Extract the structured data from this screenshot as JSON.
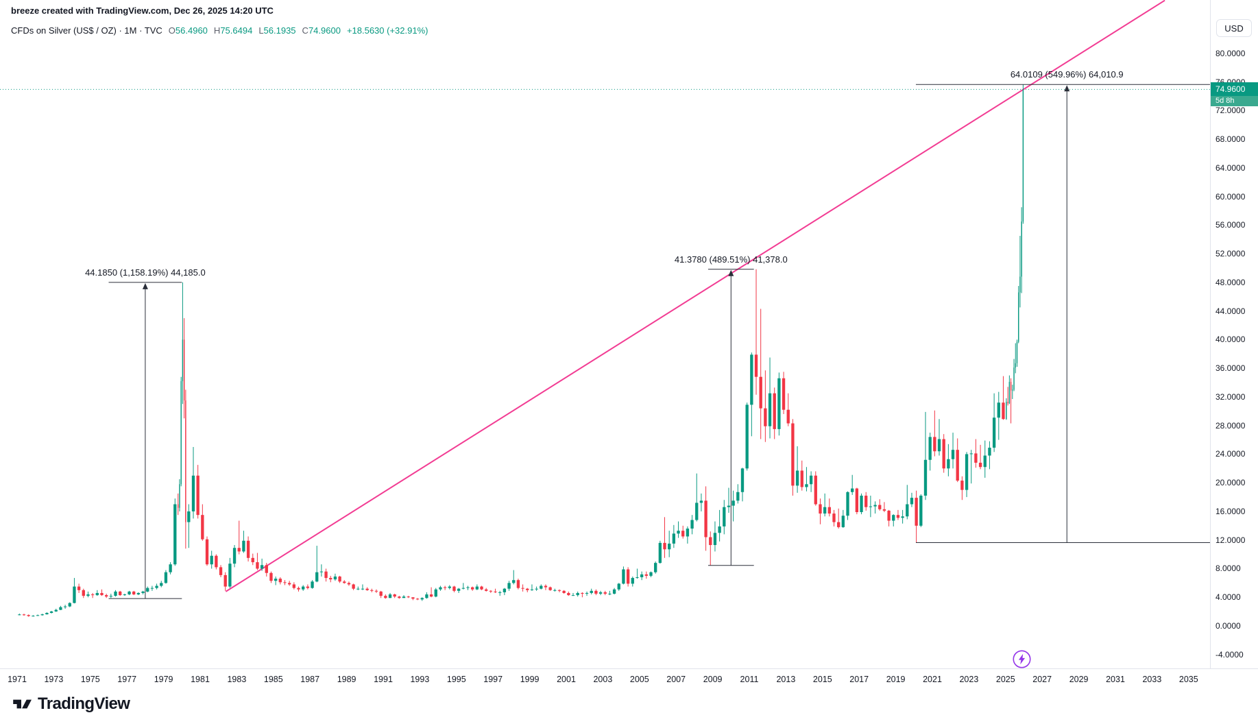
{
  "header": {
    "attribution": "breeze created with TradingView.com, Dec 26, 2025 14:20 UTC",
    "legend": {
      "title": "CFDs on Silver (US$ / OZ) · 1M · TVC",
      "ohlc": [
        {
          "label": "O",
          "value": "56.4960"
        },
        {
          "label": "H",
          "value": "75.6494"
        },
        {
          "label": "L",
          "value": "56.1935"
        },
        {
          "label": "C",
          "value": "74.9600"
        }
      ],
      "change": "+18.5630 (+32.91%)"
    }
  },
  "price_scale": {
    "currency": "USD",
    "tick_values": [
      80,
      76,
      72,
      68,
      64,
      60,
      56,
      52,
      48,
      44,
      40,
      36,
      32,
      28,
      24,
      20,
      16,
      12,
      8,
      4,
      0,
      -4
    ],
    "decimals": 4,
    "last_price_label": "74.9600",
    "countdown": "5d 8h"
  },
  "time_scale": {
    "years": [
      1971,
      1973,
      1975,
      1977,
      1979,
      1981,
      1983,
      1985,
      1987,
      1989,
      1991,
      1993,
      1995,
      1997,
      1999,
      2001,
      2003,
      2005,
      2007,
      2009,
      2011,
      2013,
      2015,
      2017,
      2019,
      2021,
      2023,
      2025,
      2027,
      2029,
      2031,
      2033,
      2035
    ]
  },
  "footer": {
    "brand": "TradingView"
  },
  "colors": {
    "up": "#089981",
    "down": "#f23645",
    "text": "#131722",
    "muted": "#787b86",
    "trendline": "#f23c93",
    "annotation": "#2a2e39",
    "separator": "#e0e3eb",
    "flash": "#9334e9"
  },
  "chart_data": {
    "type": "candlestick",
    "symbol": "CFDs on Silver (US$ / OZ)",
    "timeframe": "1M",
    "exchange": "TVC",
    "x_domain": [
      1971,
      2036.2
    ],
    "price_axis_range": [
      -5.9,
      87.4
    ],
    "last_price": 74.96,
    "last_change": "+18.5630 (+32.91%)",
    "first_open": 1.55,
    "candles": [
      [
        1971,
        1.72,
        1.48,
        1.6
      ],
      [
        1971.25,
        1.7,
        1.42,
        1.52
      ],
      [
        1971.5,
        1.6,
        1.28,
        1.38
      ],
      [
        1971.75,
        1.5,
        1.3,
        1.42
      ],
      [
        1972,
        1.58,
        1.38,
        1.5
      ],
      [
        1972.25,
        1.7,
        1.44,
        1.62
      ],
      [
        1972.5,
        1.9,
        1.58,
        1.82
      ],
      [
        1972.75,
        2.1,
        1.74,
        2.02
      ],
      [
        1973,
        2.4,
        1.96,
        2.24
      ],
      [
        1973.25,
        2.8,
        2.2,
        2.62
      ],
      [
        1973.5,
        2.95,
        2.4,
        2.72
      ],
      [
        1973.75,
        3.3,
        2.62,
        3.2
      ],
      [
        1974,
        6.7,
        3.15,
        5.5
      ],
      [
        1974.25,
        5.9,
        4.6,
        5
      ],
      [
        1974.5,
        5.2,
        3.9,
        4.2
      ],
      [
        1974.75,
        4.8,
        4,
        4.4
      ],
      [
        1975,
        4.6,
        3.9,
        4.3
      ],
      [
        1975.25,
        5,
        4.2,
        4.6
      ],
      [
        1975.5,
        5.1,
        4.2,
        4.3
      ],
      [
        1975.75,
        4.5,
        3.9,
        4.1
      ],
      [
        1976,
        4.5,
        3.9,
        4.2
      ],
      [
        1976.25,
        5,
        4.1,
        4.8
      ],
      [
        1976.5,
        4.9,
        4.2,
        4.3
      ],
      [
        1976.75,
        4.5,
        4.2,
        4.4
      ],
      [
        1977,
        4.9,
        4.3,
        4.8
      ],
      [
        1977.25,
        4.9,
        4.3,
        4.4
      ],
      [
        1977.5,
        4.7,
        4.3,
        4.6
      ],
      [
        1977.75,
        4.9,
        4.4,
        4.8
      ],
      [
        1978,
        5.5,
        4.7,
        5.3
      ],
      [
        1978.25,
        5.6,
        4.9,
        5.3
      ],
      [
        1978.5,
        5.9,
        5.1,
        5.6
      ],
      [
        1978.75,
        6.3,
        5.4,
        6
      ],
      [
        1979,
        7.8,
        5.9,
        7.5
      ],
      [
        1979.25,
        8.9,
        7.2,
        8.6
      ],
      [
        1979.5,
        17.8,
        8.4,
        17
      ],
      [
        1979.75,
        18.5,
        15.5,
        16.5
      ],
      [
        1979.833,
        20.5,
        16,
        19.8
      ],
      [
        1979.917,
        34.8,
        19.5,
        34.2
      ],
      [
        1980,
        48,
        31,
        40
      ],
      [
        1980.083,
        43,
        29,
        31.5
      ],
      [
        1980.167,
        33,
        10.8,
        14.5
      ],
      [
        1980.25,
        17,
        10.9,
        16
      ],
      [
        1980.5,
        25,
        15,
        21
      ],
      [
        1980.75,
        22.5,
        15,
        15.5
      ],
      [
        1981,
        17,
        11.9,
        12.1
      ],
      [
        1981.25,
        12.5,
        8.4,
        8.6
      ],
      [
        1981.5,
        10.5,
        8,
        9.8
      ],
      [
        1981.75,
        10,
        7.9,
        8.2
      ],
      [
        1982,
        8.5,
        6.8,
        7.1
      ],
      [
        1982.25,
        7.5,
        4.9,
        5.5
      ],
      [
        1982.5,
        9.5,
        5.3,
        8.7
      ],
      [
        1982.75,
        11.3,
        8.2,
        10.9
      ],
      [
        1983,
        14.7,
        10,
        10.4
      ],
      [
        1983.25,
        13.3,
        10.2,
        11.9
      ],
      [
        1983.5,
        12.5,
        9,
        9.5
      ],
      [
        1983.75,
        10.1,
        8.5,
        8.9
      ],
      [
        1984,
        10.2,
        7.8,
        8
      ],
      [
        1984.25,
        9.4,
        7.7,
        8.5
      ],
      [
        1984.5,
        8.8,
        6.9,
        7.4
      ],
      [
        1984.75,
        7.6,
        6,
        6.3
      ],
      [
        1985,
        6.9,
        5.7,
        6.6
      ],
      [
        1985.25,
        6.8,
        5.8,
        6.1
      ],
      [
        1985.5,
        6.4,
        5.7,
        6
      ],
      [
        1985.75,
        6.3,
        5.6,
        5.8
      ],
      [
        1986,
        6.1,
        5.1,
        5.3
      ],
      [
        1986.25,
        5.5,
        4.8,
        5.1
      ],
      [
        1986.5,
        5.7,
        4.9,
        5.5
      ],
      [
        1986.75,
        5.8,
        5.1,
        5.3
      ],
      [
        1987,
        6.4,
        5.2,
        6.2
      ],
      [
        1987.25,
        11.2,
        6.1,
        7.5
      ],
      [
        1987.5,
        8.6,
        6.9,
        7.6
      ],
      [
        1987.75,
        8,
        6.2,
        6.7
      ],
      [
        1988,
        7,
        6.1,
        6.5
      ],
      [
        1988.25,
        7.3,
        6.3,
        6.9
      ],
      [
        1988.5,
        7,
        6,
        6.2
      ],
      [
        1988.75,
        6.4,
        5.9,
        6
      ],
      [
        1989,
        6.2,
        5.6,
        5.8
      ],
      [
        1989.25,
        5.9,
        5,
        5.2
      ],
      [
        1989.5,
        5.5,
        5,
        5.2
      ],
      [
        1989.75,
        5.8,
        5,
        5.2
      ],
      [
        1990,
        5.4,
        4.9,
        5
      ],
      [
        1990.25,
        5.2,
        4.7,
        4.9
      ],
      [
        1990.5,
        5.1,
        4.6,
        4.8
      ],
      [
        1990.75,
        4.9,
        3.9,
        4.2
      ],
      [
        1991,
        4.4,
        3.8,
        3.9
      ],
      [
        1991.25,
        4.6,
        3.9,
        4.4
      ],
      [
        1991.5,
        4.5,
        3.9,
        4.1
      ],
      [
        1991.75,
        4.2,
        3.8,
        3.9
      ],
      [
        1992,
        4.3,
        4,
        4.1
      ],
      [
        1992.25,
        4.2,
        3.9,
        4
      ],
      [
        1992.5,
        4,
        3.6,
        3.8
      ],
      [
        1992.75,
        3.9,
        3.6,
        3.7
      ],
      [
        1993,
        4,
        3.5,
        3.9
      ],
      [
        1993.25,
        4.7,
        3.8,
        4.4
      ],
      [
        1993.5,
        5.4,
        4,
        4.1
      ],
      [
        1993.75,
        5.3,
        4,
        5.1
      ],
      [
        1994,
        5.6,
        4.9,
        5.4
      ],
      [
        1994.25,
        5.6,
        5,
        5.3
      ],
      [
        1994.5,
        5.7,
        5.1,
        5.5
      ],
      [
        1994.75,
        5.6,
        4.7,
        4.9
      ],
      [
        1995,
        5.3,
        4.6,
        5.2
      ],
      [
        1995.25,
        6,
        5.1,
        5.3
      ],
      [
        1995.5,
        5.6,
        5,
        5.4
      ],
      [
        1995.75,
        5.5,
        4.9,
        5.1
      ],
      [
        1996,
        5.8,
        5,
        5.5
      ],
      [
        1996.25,
        5.6,
        5,
        5.1
      ],
      [
        1996.5,
        5.3,
        4.8,
        4.9
      ],
      [
        1996.75,
        5,
        4.6,
        4.8
      ],
      [
        1997,
        5.2,
        4.6,
        4.7
      ],
      [
        1997.25,
        4.9,
        4.2,
        4.7
      ],
      [
        1997.5,
        5.3,
        4.3,
        5.2
      ],
      [
        1997.75,
        6.3,
        4.9,
        6
      ],
      [
        1998,
        7.8,
        5.8,
        6.4
      ],
      [
        1998.25,
        6.6,
        5.1,
        5.3
      ],
      [
        1998.5,
        5.8,
        4.8,
        5.2
      ],
      [
        1998.75,
        5.3,
        4.7,
        5
      ],
      [
        1999,
        5.8,
        4.9,
        5.1
      ],
      [
        1999.25,
        5.5,
        4.9,
        5.2
      ],
      [
        1999.5,
        5.8,
        5.1,
        5.6
      ],
      [
        1999.75,
        5.8,
        5,
        5.4
      ],
      [
        2000,
        5.5,
        4.9,
        5
      ],
      [
        2000.25,
        5.2,
        4.8,
        5
      ],
      [
        2000.5,
        5.1,
        4.7,
        4.9
      ],
      [
        2000.75,
        5,
        4.5,
        4.6
      ],
      [
        2001,
        4.8,
        4.2,
        4.3
      ],
      [
        2001.25,
        4.6,
        4.2,
        4.3
      ],
      [
        2001.5,
        4.8,
        4.1,
        4.6
      ],
      [
        2001.75,
        4.7,
        4,
        4.5
      ],
      [
        2002,
        4.8,
        4.2,
        4.6
      ],
      [
        2002.25,
        5.2,
        4.4,
        4.9
      ],
      [
        2002.5,
        5.1,
        4.3,
        4.5
      ],
      [
        2002.75,
        4.9,
        4.3,
        4.7
      ],
      [
        2003,
        4.9,
        4.3,
        4.5
      ],
      [
        2003.25,
        4.9,
        4.3,
        4.5
      ],
      [
        2003.5,
        5.3,
        4.4,
        5.1
      ],
      [
        2003.75,
        6,
        4.9,
        5.9
      ],
      [
        2004,
        8.3,
        5.8,
        7.9
      ],
      [
        2004.25,
        8.2,
        5.5,
        5.9
      ],
      [
        2004.5,
        6.9,
        5.5,
        6.7
      ],
      [
        2004.75,
        8,
        6.6,
        6.8
      ],
      [
        2005,
        7.6,
        6.4,
        7.2
      ],
      [
        2005.25,
        7.6,
        6.6,
        7
      ],
      [
        2005.5,
        7.6,
        6.8,
        7.5
      ],
      [
        2005.75,
        9,
        7.3,
        8.8
      ],
      [
        2006,
        11.9,
        8.7,
        11.6
      ],
      [
        2006.25,
        15.2,
        9.5,
        10.7
      ],
      [
        2006.5,
        13.3,
        9.6,
        11.5
      ],
      [
        2006.75,
        14.1,
        10.9,
        12.9
      ],
      [
        2007,
        14.6,
        12.3,
        13.3
      ],
      [
        2007.25,
        14,
        12.2,
        12.5
      ],
      [
        2007.5,
        13.9,
        11.5,
        13.6
      ],
      [
        2007.75,
        15.5,
        12.8,
        14.8
      ],
      [
        2008,
        21.3,
        14.6,
        17.2
      ],
      [
        2008.25,
        18.5,
        16,
        17.5
      ],
      [
        2008.5,
        19.5,
        10.5,
        12.4
      ],
      [
        2008.75,
        13.2,
        8.45,
        11.3
      ],
      [
        2009,
        14.6,
        10.4,
        13
      ],
      [
        2009.25,
        16.2,
        11.8,
        13.9
      ],
      [
        2009.5,
        17.6,
        12.8,
        16.6
      ],
      [
        2009.75,
        19.3,
        15.8,
        16.8
      ],
      [
        2010,
        18.9,
        14.6,
        17.5
      ],
      [
        2010.25,
        19.8,
        17.1,
        18.7
      ],
      [
        2010.5,
        22.1,
        17.4,
        22
      ],
      [
        2010.75,
        31.2,
        21.7,
        30.9
      ],
      [
        2011,
        38.2,
        26.5,
        37.9
      ],
      [
        2011.25,
        49.83,
        32.3,
        34.8
      ],
      [
        2011.5,
        44.3,
        26.1,
        30.4
      ],
      [
        2011.75,
        35.7,
        25.7,
        27.9
      ],
      [
        2012,
        37.5,
        26.2,
        32.5
      ],
      [
        2012.25,
        33.3,
        26.1,
        27.5
      ],
      [
        2012.5,
        35.4,
        26.6,
        34.6
      ],
      [
        2012.75,
        35.5,
        29.6,
        30.2
      ],
      [
        2013,
        32.5,
        27.9,
        28.3
      ],
      [
        2013.25,
        28.9,
        18.2,
        19.6
      ],
      [
        2013.5,
        25.1,
        18.6,
        21.7
      ],
      [
        2013.75,
        23.1,
        18.9,
        19.4
      ],
      [
        2014,
        22.2,
        18.8,
        19.8
      ],
      [
        2014.25,
        21.6,
        18.7,
        21
      ],
      [
        2014.5,
        21.6,
        16.8,
        17
      ],
      [
        2014.75,
        17.8,
        14.2,
        15.7
      ],
      [
        2015,
        18.5,
        15.3,
        16.6
      ],
      [
        2015.25,
        17.8,
        15.3,
        15.7
      ],
      [
        2015.5,
        16.2,
        13.9,
        14.5
      ],
      [
        2015.75,
        16.4,
        13.6,
        13.8
      ],
      [
        2016,
        16.2,
        13.7,
        15.4
      ],
      [
        2016.25,
        18.8,
        14.8,
        18.7
      ],
      [
        2016.5,
        21.1,
        18.3,
        19.2
      ],
      [
        2016.75,
        19.3,
        15.6,
        15.9
      ],
      [
        2017,
        18.5,
        15.6,
        18.2
      ],
      [
        2017.25,
        18.7,
        16.1,
        16.6
      ],
      [
        2017.5,
        18.2,
        15.2,
        16.7
      ],
      [
        2017.75,
        17.4,
        15.7,
        16.9
      ],
      [
        2018,
        17.7,
        16.1,
        16.3
      ],
      [
        2018.25,
        17.3,
        15.9,
        16.1
      ],
      [
        2018.5,
        16.2,
        13.9,
        14.7
      ],
      [
        2018.75,
        15.6,
        13.9,
        15.5
      ],
      [
        2019,
        16.2,
        14.8,
        15.1
      ],
      [
        2019.25,
        16.2,
        14.3,
        15.3
      ],
      [
        2019.5,
        19.7,
        14.9,
        17
      ],
      [
        2019.75,
        18.6,
        16.6,
        17.9
      ],
      [
        2020,
        18.9,
        11.64,
        14
      ],
      [
        2020.25,
        18.4,
        13.8,
        18.2
      ],
      [
        2020.5,
        29.9,
        17.6,
        23.2
      ],
      [
        2020.75,
        27,
        21.7,
        26.4
      ],
      [
        2021,
        30.1,
        23.7,
        24.4
      ],
      [
        2021.25,
        28.9,
        23.8,
        26.1
      ],
      [
        2021.5,
        26.8,
        21.4,
        22
      ],
      [
        2021.75,
        25.4,
        20.9,
        23.3
      ],
      [
        2022,
        27,
        22,
        24.6
      ],
      [
        2022.25,
        26.2,
        20.1,
        20.3
      ],
      [
        2022.5,
        20.9,
        17.6,
        19
      ],
      [
        2022.75,
        24.3,
        18,
        24
      ],
      [
        2023,
        24.6,
        19.9,
        24.1
      ],
      [
        2023.25,
        26.1,
        22.1,
        22.8
      ],
      [
        2023.5,
        25.3,
        21.9,
        22.2
      ],
      [
        2023.75,
        25.9,
        20.7,
        23.8
      ],
      [
        2024,
        25.8,
        21.9,
        24.9
      ],
      [
        2024.25,
        32.5,
        24.3,
        29.1
      ],
      [
        2024.5,
        32.7,
        26,
        31.2
      ],
      [
        2024.75,
        34.9,
        28.8,
        28.9
      ],
      [
        2025,
        31.8,
        28.8,
        31.3
      ],
      [
        2025.083,
        33.4,
        30.8,
        31.1
      ],
      [
        2025.167,
        35,
        31,
        34.1
      ],
      [
        2025.25,
        34.6,
        28.3,
        32.9
      ],
      [
        2025.333,
        33.7,
        31.7,
        33
      ],
      [
        2025.417,
        37.3,
        32.8,
        36.1
      ],
      [
        2025.5,
        39.5,
        35.3,
        36.7
      ],
      [
        2025.583,
        40,
        36.2,
        39.7
      ],
      [
        2025.667,
        47.5,
        39.5,
        46.6
      ],
      [
        2025.75,
        54.5,
        44.5,
        48.8
      ],
      [
        2025.833,
        58.5,
        46.5,
        56.5
      ],
      [
        2025.917,
        75.6494,
        56.1935,
        74.96
      ]
    ],
    "trendline": {
      "from": [
        1982.4,
        4.8
      ],
      "to": [
        2033.7,
        87.4
      ]
    },
    "annotations": [
      {
        "label": "44.1850 (1,158.19%) 44,185.0",
        "t": 1978.0,
        "price_top": 48.0,
        "price_bottom": 3.82,
        "whisker_years": 2.0
      },
      {
        "label": "41.3780 (489.51%) 41,378.0",
        "t": 2010.0,
        "price_top": 49.83,
        "price_bottom": 8.45,
        "whisker_years": 1.25
      },
      {
        "label": "64.0109 (549.96%) 64,010.9",
        "t": 2028.35,
        "price_top": 75.65,
        "price_bottom": 11.64,
        "extend_from_t": 2020.1,
        "extend_to_right": true
      }
    ]
  }
}
